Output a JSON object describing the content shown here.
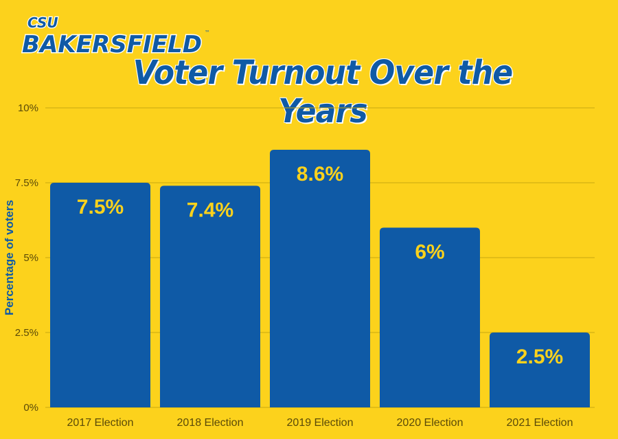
{
  "logo": {
    "top_text": "CSU",
    "main_text": "BAKERSFIELD",
    "tm": "™"
  },
  "chart_data": {
    "type": "bar",
    "title": "Voter Turnout Over the Years",
    "xlabel": "",
    "ylabel": "Percentage of voters",
    "categories": [
      "2017 Election",
      "2018 Election",
      "2019 Election",
      "2020 Election",
      "2021 Election"
    ],
    "values": [
      7.5,
      7.4,
      8.6,
      6,
      2.5
    ],
    "data_labels": [
      "7.5%",
      "7.4%",
      "8.6%",
      "6%",
      "2.5%"
    ],
    "ylim": [
      0,
      10
    ],
    "yticks": [
      0,
      2.5,
      5,
      7.5,
      10
    ],
    "ytick_labels": [
      "0%",
      "2.5%",
      "5%",
      "7.5%",
      "10%"
    ],
    "grid": true,
    "legend": "none",
    "colors": {
      "bar": "#0f5aa6",
      "background": "#fcd21c",
      "label": "#fcd21c",
      "grid": "#c9a80f",
      "tick": "#5a4a08"
    }
  }
}
